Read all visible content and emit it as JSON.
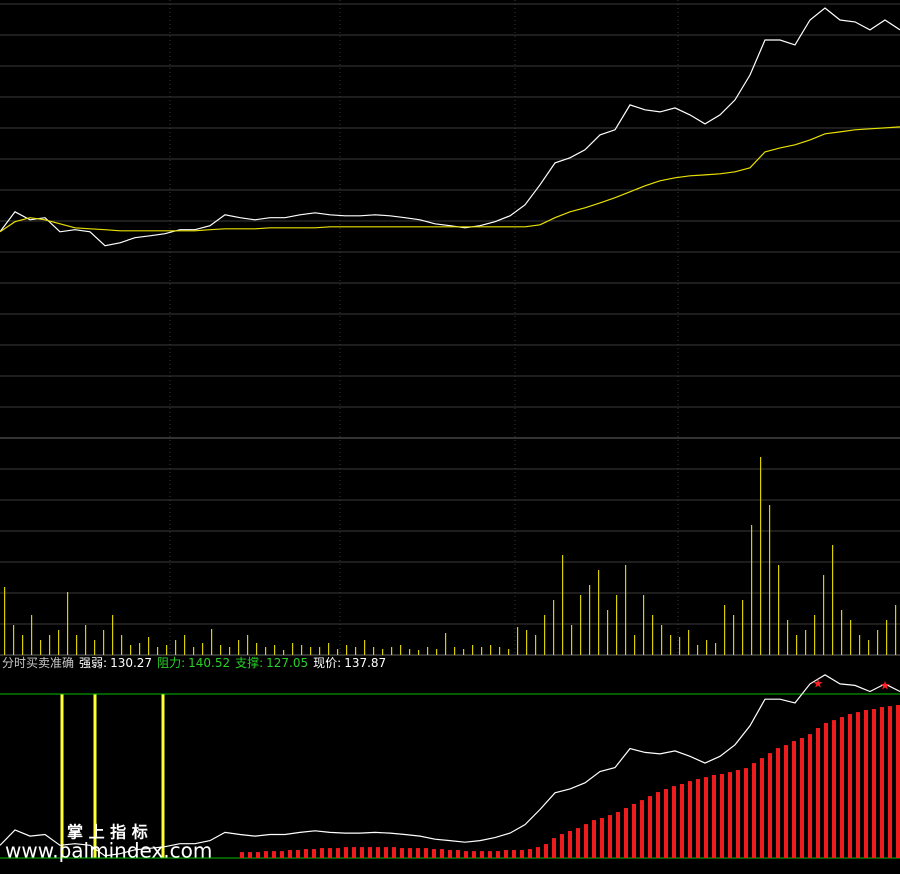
{
  "chart_data": [
    {
      "type": "line",
      "ylim": [
        115.2,
        142.6
      ],
      "series": [
        {
          "color": "#ffffff",
          "values": [
            128.1,
            129.35,
            128.85,
            128.98,
            128.1,
            128.23,
            128.1,
            127.23,
            127.41,
            127.73,
            127.85,
            127.98,
            128.23,
            128.23,
            128.48,
            129.16,
            128.98,
            128.85,
            128.98,
            128.98,
            129.16,
            129.29,
            129.16,
            129.1,
            129.1,
            129.16,
            129.1,
            128.98,
            128.85,
            128.6,
            128.48,
            128.35,
            128.48,
            128.73,
            129.1,
            129.79,
            131.04,
            132.41,
            132.73,
            133.23,
            134.16,
            134.48,
            136.04,
            135.73,
            135.6,
            135.85,
            135.41,
            134.85,
            135.41,
            136.35,
            137.91,
            140.1,
            140.1,
            139.79,
            141.35,
            142.1,
            141.35,
            141.23,
            140.73,
            141.35,
            140.73
          ]
        },
        {
          "color": "#e8e000",
          "values": [
            128.1,
            128.73,
            128.98,
            128.85,
            128.6,
            128.35,
            128.29,
            128.23,
            128.16,
            128.16,
            128.16,
            128.16,
            128.16,
            128.16,
            128.23,
            128.29,
            128.29,
            128.29,
            128.35,
            128.35,
            128.35,
            128.35,
            128.41,
            128.41,
            128.41,
            128.41,
            128.41,
            128.41,
            128.41,
            128.41,
            128.41,
            128.41,
            128.41,
            128.41,
            128.41,
            128.41,
            128.54,
            128.98,
            129.35,
            129.6,
            129.91,
            130.23,
            130.6,
            130.98,
            131.29,
            131.48,
            131.6,
            131.66,
            131.73,
            131.85,
            132.1,
            133.1,
            133.35,
            133.54,
            133.85,
            134.23,
            134.35,
            134.48,
            134.54,
            134.6,
            134.66
          ]
        }
      ]
    },
    {
      "type": "bar",
      "ylim": [
        0,
        215
      ],
      "color": "#d8d000",
      "values": [
        68,
        30,
        20,
        40,
        15,
        20,
        25,
        63,
        20,
        30,
        15,
        25,
        40,
        20,
        10,
        12,
        18,
        8,
        10,
        15,
        20,
        8,
        12,
        26,
        10,
        8,
        15,
        20,
        12,
        8,
        10,
        5,
        12,
        10,
        8,
        8,
        12,
        6,
        10,
        8,
        15,
        8,
        6,
        8,
        10,
        6,
        5,
        8,
        6,
        22,
        8,
        6,
        10,
        8,
        10,
        8,
        6,
        28,
        25,
        20,
        40,
        55,
        100,
        30,
        60,
        70,
        85,
        45,
        60,
        90,
        20,
        60,
        40,
        30,
        20,
        18,
        25,
        10,
        15,
        12,
        50,
        40,
        55,
        130,
        198,
        150,
        90,
        35,
        20,
        25,
        40,
        80,
        110,
        45,
        35,
        20,
        15,
        25,
        35,
        50
      ]
    },
    {
      "type": "bar",
      "title": "分时买卖准确",
      "ylim": [
        125.74,
        142.33
      ],
      "color": "#ee1c1c",
      "stats": [
        {
          "label": "强弱:",
          "value": 130.27,
          "color": "#ffffff"
        },
        {
          "label": "阻力:",
          "value": 140.52,
          "color": "#28d028"
        },
        {
          "label": "支撑:",
          "value": 127.05,
          "color": "#28d028"
        },
        {
          "label": "现价:",
          "value": 137.87,
          "color": "#ffffff"
        }
      ],
      "values": [
        127.54,
        127.54,
        127.54,
        127.62,
        127.62,
        127.62,
        127.71,
        127.71,
        127.79,
        127.79,
        127.87,
        127.87,
        127.87,
        127.95,
        127.95,
        127.95,
        127.95,
        127.95,
        127.95,
        127.95,
        127.87,
        127.87,
        127.87,
        127.87,
        127.79,
        127.79,
        127.71,
        127.71,
        127.62,
        127.62,
        127.62,
        127.62,
        127.62,
        127.71,
        127.71,
        127.71,
        127.79,
        127.95,
        128.2,
        128.69,
        129.02,
        129.27,
        129.51,
        129.84,
        130.17,
        130.34,
        130.58,
        130.83,
        131.16,
        131.49,
        131.81,
        132.14,
        132.47,
        132.72,
        132.96,
        133.13,
        133.37,
        133.54,
        133.7,
        133.87,
        133.95,
        134.11,
        134.28,
        134.44,
        134.85,
        135.26,
        135.67,
        136.08,
        136.33,
        136.66,
        136.91,
        137.23,
        137.73,
        138.14,
        138.38,
        138.63,
        138.88,
        139.04,
        139.21,
        139.29,
        139.45,
        139.53,
        139.62
      ]
    }
  ],
  "watermark": {
    "brand": "掌 上 指 标",
    "url": "www.palmindex.com"
  }
}
